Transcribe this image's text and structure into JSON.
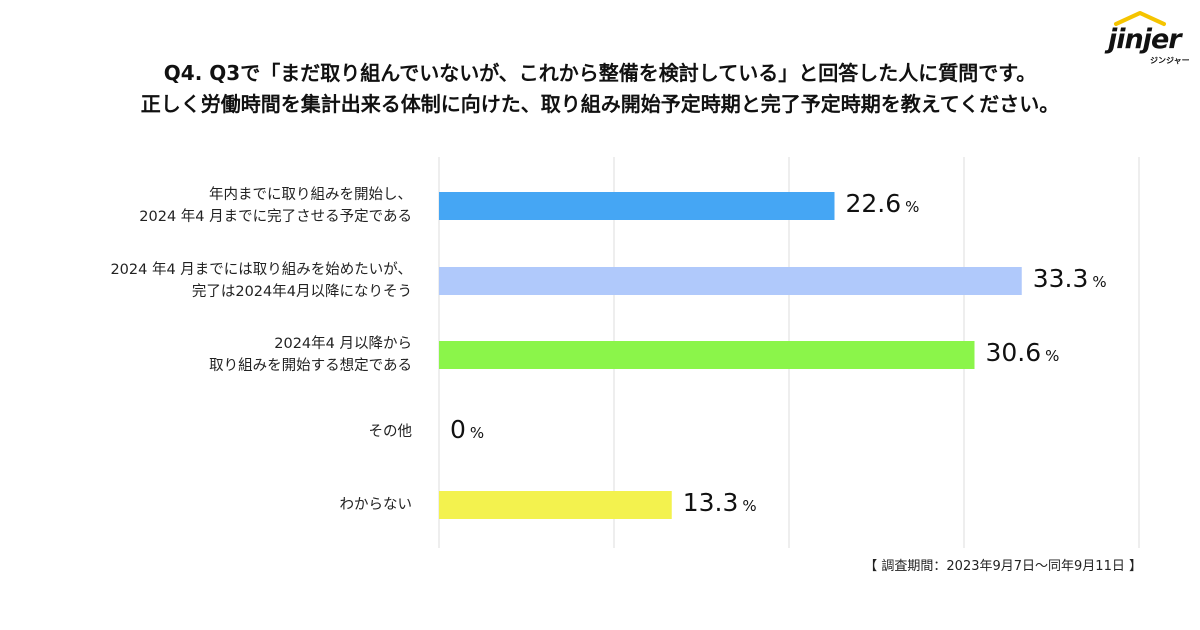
{
  "title": {
    "line1": "Q4. Q3で「まだ取り組んでいないが、これから整備を検討している」と回答した人に質問です。",
    "line2": "正しく労働時間を集計出来る体制に向けた、取り組み開始予定時期と完了予定時期を教えてください。"
  },
  "logo": {
    "word": "jinjer",
    "sub": "ジンジャー"
  },
  "footnote": "【 調査期間：2023年9月7日〜同年9月11日 】",
  "chart_data": {
    "type": "bar",
    "orientation": "horizontal",
    "categories": [
      [
        "年内までに取り組みを開始し、",
        "2024 年4 月までに完了させる予定である"
      ],
      [
        "2024 年4 月までには取り組みを始めたいが、",
        "完了は2024年4月以降になりそう"
      ],
      [
        "2024年4 月以降から",
        "取り組みを開始する想定である"
      ],
      [
        "その他"
      ],
      [
        "わからない"
      ]
    ],
    "values": [
      22.6,
      33.3,
      30.6,
      0,
      13.3
    ],
    "value_labels": [
      "22.6",
      "33.3",
      "30.6",
      "0",
      "13.3"
    ],
    "unit": "%",
    "colors": [
      "#45a6f4",
      "#b0c9fb",
      "#8bf54a",
      "#cccccc",
      "#f3f24e"
    ],
    "xlim": [
      0,
      40
    ],
    "grid": true,
    "grid_color": "#dedede"
  }
}
